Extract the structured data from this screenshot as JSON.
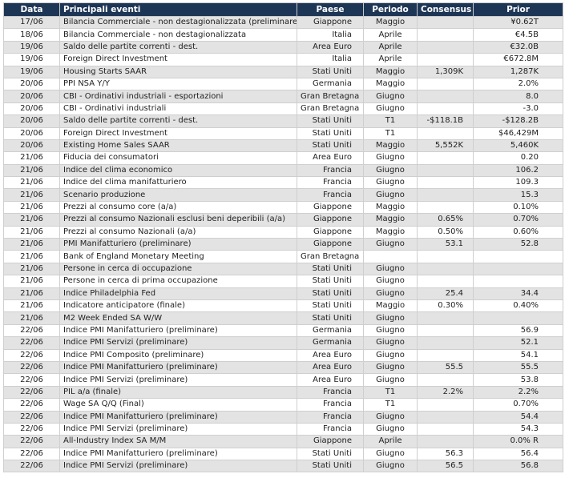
{
  "table": {
    "header": [
      "Data",
      "Principali eventi",
      "Paese",
      "Periodo",
      "Consensus",
      "Prior"
    ],
    "rows": [
      [
        "17/06",
        "Bilancia Commerciale  - non destagionalizzata (preliminare)",
        "Giappone",
        "Maggio",
        null,
        "¥0.62T"
      ],
      [
        "18/06",
        "Bilancia Commerciale - non destagionalizzata",
        "Italia",
        "Aprile",
        null,
        "€4.5B"
      ],
      [
        "19/06",
        "Saldo delle partite correnti - dest.",
        "Area Euro",
        "Aprile",
        null,
        "€32.0B"
      ],
      [
        "19/06",
        "Foreign Direct Investment",
        "Italia",
        "Aprile",
        null,
        "€672.8M"
      ],
      [
        "19/06",
        "Housing Starts SAAR",
        "Stati Uniti",
        "Maggio",
        "1,309K",
        "1,287K"
      ],
      [
        "20/06",
        "PPI NSA Y/Y",
        "Germania",
        "Maggio",
        null,
        "2.0%"
      ],
      [
        "20/06",
        "CBI - Ordinativi industriali - esportazioni",
        "Gran Bretagna",
        "Giugno",
        null,
        "8.0"
      ],
      [
        "20/06",
        "CBI - Ordinativi industriali",
        "Gran Bretagna",
        "Giugno",
        null,
        "-3.0"
      ],
      [
        "20/06",
        "Saldo delle partite correnti - dest.",
        "Stati Uniti",
        "T1",
        "-$118.1B",
        "-$128.2B"
      ],
      [
        "20/06",
        "Foreign Direct Investment",
        "Stati Uniti",
        "T1",
        null,
        "$46,429M"
      ],
      [
        "20/06",
        "Existing Home Sales SAAR",
        "Stati Uniti",
        "Maggio",
        "5,552K",
        "5,460K"
      ],
      [
        "21/06",
        "Fiducia dei consumatori",
        "Area Euro",
        "Giugno",
        null,
        "0.20"
      ],
      [
        "21/06",
        "Indice del clima economico",
        "Francia",
        "Giugno",
        null,
        "106.2"
      ],
      [
        "21/06",
        "Indice del clima manifatturiero",
        "Francia",
        "Giugno",
        null,
        "109.3"
      ],
      [
        "21/06",
        "Scenario produzione",
        "Francia",
        "Giugno",
        null,
        "15.3"
      ],
      [
        "21/06",
        "Prezzi al consumo core (a/a)",
        "Giappone",
        "Maggio",
        null,
        "0.10%"
      ],
      [
        "21/06",
        "Prezzi al consumo Nazionali esclusi beni deperibili (a/a)",
        "Giappone",
        "Maggio",
        "0.65%",
        "0.70%"
      ],
      [
        "21/06",
        "Prezzi al consumo Nazionali (a/a)",
        "Giappone",
        "Maggio",
        "0.50%",
        "0.60%"
      ],
      [
        "21/06",
        "PMI Manifatturiero (preliminare)",
        "Giappone",
        "Giugno",
        "53.1",
        "52.8"
      ],
      [
        "21/06",
        "Bank of England Monetary Meeting",
        "Gran Bretagna",
        null,
        null,
        null
      ],
      [
        "21/06",
        "Persone in cerca di occupazione",
        "Stati Uniti",
        "Giugno",
        null,
        null
      ],
      [
        "21/06",
        "Persone in cerca di prima occupazione",
        "Stati Uniti",
        "Giugno",
        null,
        null
      ],
      [
        "21/06",
        "Indice Philadelphia Fed",
        "Stati Uniti",
        "Giugno",
        "25.4",
        "34.4"
      ],
      [
        "21/06",
        "Indicatore anticipatore (finale)",
        "Stati Uniti",
        "Maggio",
        "0.30%",
        "0.40%"
      ],
      [
        "21/06",
        "M2 Week Ended SA W/W",
        "Stati Uniti",
        "Giugno",
        null,
        null
      ],
      [
        "22/06",
        "Indice PMI Manifatturiero (preliminare)",
        "Germania",
        "Giugno",
        null,
        "56.9"
      ],
      [
        "22/06",
        "Indice PMI Servizi (preliminare)",
        "Germania",
        "Giugno",
        null,
        "52.1"
      ],
      [
        "22/06",
        "Indice PMI Composito (preliminare)",
        "Area Euro",
        "Giugno",
        null,
        "54.1"
      ],
      [
        "22/06",
        "Indice PMI Manifatturiero (preliminare)",
        "Area Euro",
        "Giugno",
        "55.5",
        "55.5"
      ],
      [
        "22/06",
        "Indice PMI Servizi (preliminare)",
        "Area Euro",
        "Giugno",
        null,
        "53.8"
      ],
      [
        "22/06",
        "PIL a/a (finale)",
        "Francia",
        "T1",
        "2.2%",
        "2.2%"
      ],
      [
        "22/06",
        "Wage SA Q/Q (Final)",
        "Francia",
        "T1",
        null,
        "0.70%"
      ],
      [
        "22/06",
        "Indice PMI Manifatturiero (preliminare)",
        "Francia",
        "Giugno",
        null,
        "54.4"
      ],
      [
        "22/06",
        "Indice PMI Servizi (preliminare)",
        "Francia",
        "Giugno",
        null,
        "54.3"
      ],
      [
        "22/06",
        "All-Industry Index SA M/M",
        "Giappone",
        "Aprile",
        null,
        "0.0% R"
      ],
      [
        "22/06",
        "Indice PMI Manifatturiero (preliminare)",
        "Stati Uniti",
        "Giugno",
        "56.3",
        "56.4"
      ],
      [
        "22/06",
        "Indice PMI Servizi (preliminare)",
        "Stati Uniti",
        "Giugno",
        "56.5",
        "56.8"
      ]
    ]
  }
}
